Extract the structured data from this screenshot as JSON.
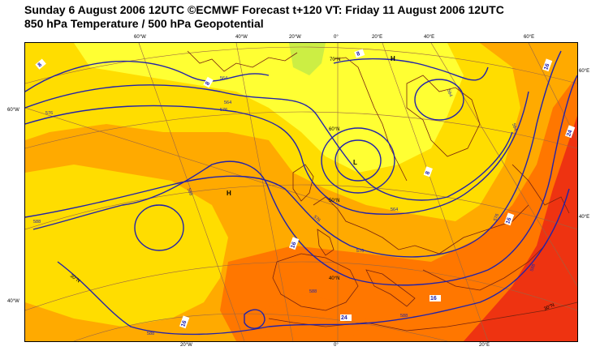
{
  "title": {
    "line1": "Sunday 6 August 2006 12UTC ©ECMWF Forecast t+120 VT: Friday 11 August 2006 12UTC",
    "line2": "850 hPa Temperature / 500 hPa Geopotential"
  },
  "top_ticks": [
    "60°W",
    "40°W",
    "20°W",
    "0°",
    "20°E",
    "40°E",
    "60°E"
  ],
  "bottom_ticks": [
    "20°W",
    "0°",
    "20°E"
  ],
  "left_ticks": [
    "60°W",
    "40°W"
  ],
  "right_ticks": [
    "60°E",
    "40°E"
  ],
  "lat_labels": [
    "70°N",
    "60°N",
    "50°N",
    "40°N",
    "30°N",
    "30°N"
  ],
  "pressure_centers": [
    "H",
    "H",
    "L"
  ],
  "geopotential_labels": [
    "564",
    "576",
    "576",
    "564",
    "588",
    "588",
    "588",
    "576",
    "564",
    "576",
    "588",
    "588",
    "564",
    "564",
    "576",
    "588"
  ],
  "temperature_labels": [
    "8",
    "8",
    "8",
    "8",
    "16",
    "16",
    "16",
    "16",
    "24",
    "24",
    "16"
  ],
  "colors": {
    "cold": "#ccee44",
    "cool": "#ffff33",
    "mild": "#ffdd00",
    "warm": "#ffaa00",
    "hot": "#ff7700",
    "very_hot": "#ee3311",
    "contour": "#2222aa",
    "coast": "#772211",
    "grid": "#996644"
  }
}
